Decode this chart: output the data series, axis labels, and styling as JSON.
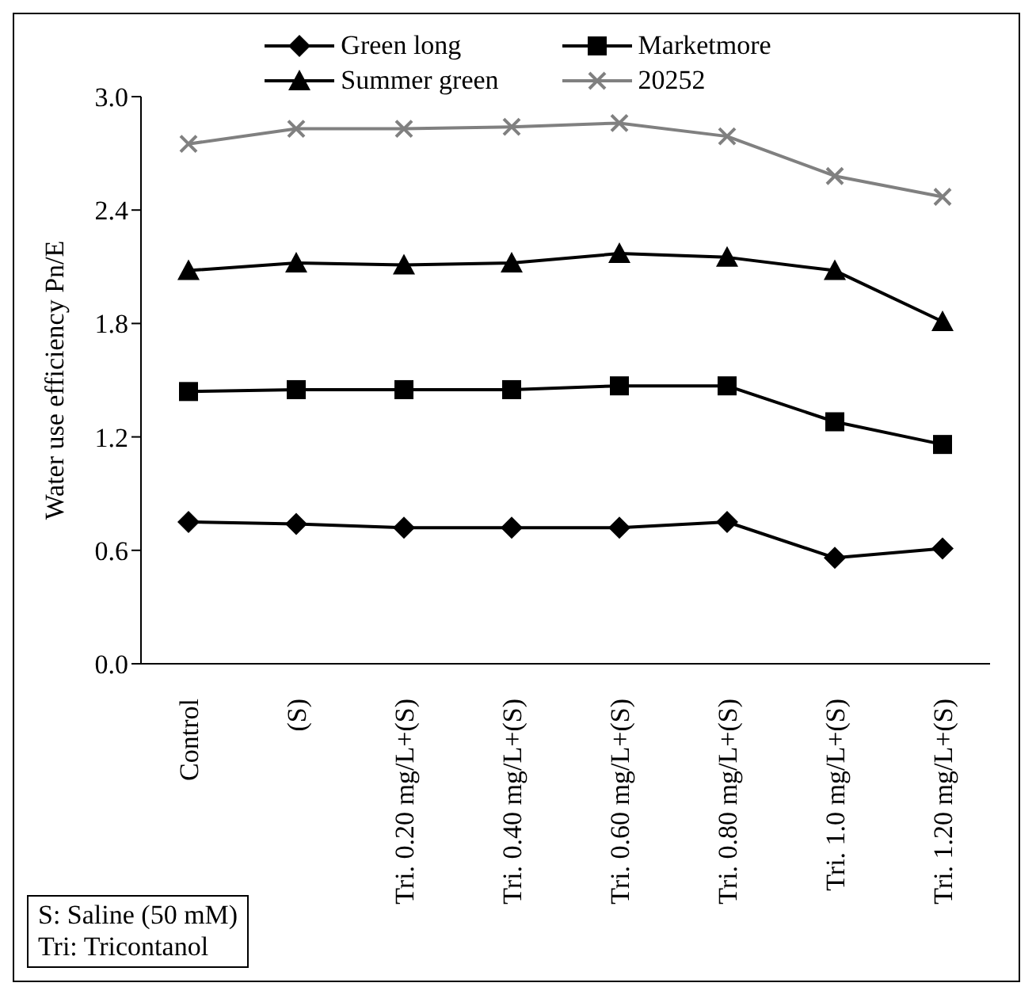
{
  "chart_data": {
    "type": "line",
    "ylabel": "Water use efficiency Pn/E",
    "categories": [
      "Control",
      "(S)",
      "Tri. 0.20 mg/L+(S)",
      "Tri. 0.40 mg/L+(S)",
      "Tri. 0.60 mg/L+(S)",
      "Tri. 0.80 mg/L+(S)",
      "Tri. 1.0 mg/L+(S)",
      "Tri. 1.20 mg/L+(S)"
    ],
    "series": [
      {
        "name": "Green long",
        "color": "#000000",
        "marker": "diamond",
        "values": [
          0.75,
          0.74,
          0.72,
          0.72,
          0.72,
          0.75,
          0.56,
          0.61
        ]
      },
      {
        "name": "Marketmore",
        "color": "#000000",
        "marker": "square",
        "values": [
          1.44,
          1.45,
          1.45,
          1.45,
          1.47,
          1.47,
          1.28,
          1.16
        ]
      },
      {
        "name": "Summer green",
        "color": "#000000",
        "marker": "triangle",
        "values": [
          2.08,
          2.12,
          2.11,
          2.12,
          2.17,
          2.15,
          2.08,
          1.81
        ]
      },
      {
        "name": "20252",
        "color": "#808080",
        "marker": "cross",
        "values": [
          2.75,
          2.83,
          2.83,
          2.84,
          2.86,
          2.79,
          2.58,
          2.47
        ]
      }
    ],
    "ylim": [
      0,
      3
    ],
    "yticks": [
      {
        "value": 0,
        "label": "0.0"
      },
      {
        "value": 0.6,
        "label": "0.6"
      },
      {
        "value": 1.2,
        "label": "1.2"
      },
      {
        "value": 1.8,
        "label": "1.8"
      },
      {
        "value": 2.4,
        "label": "2.4"
      },
      {
        "value": 3,
        "label": "3.0"
      }
    ],
    "grid": false,
    "legend": "top",
    "line_style": "solid",
    "annotations": [
      "S: Saline (50 mM)",
      "Tri: Tricontanol"
    ]
  }
}
